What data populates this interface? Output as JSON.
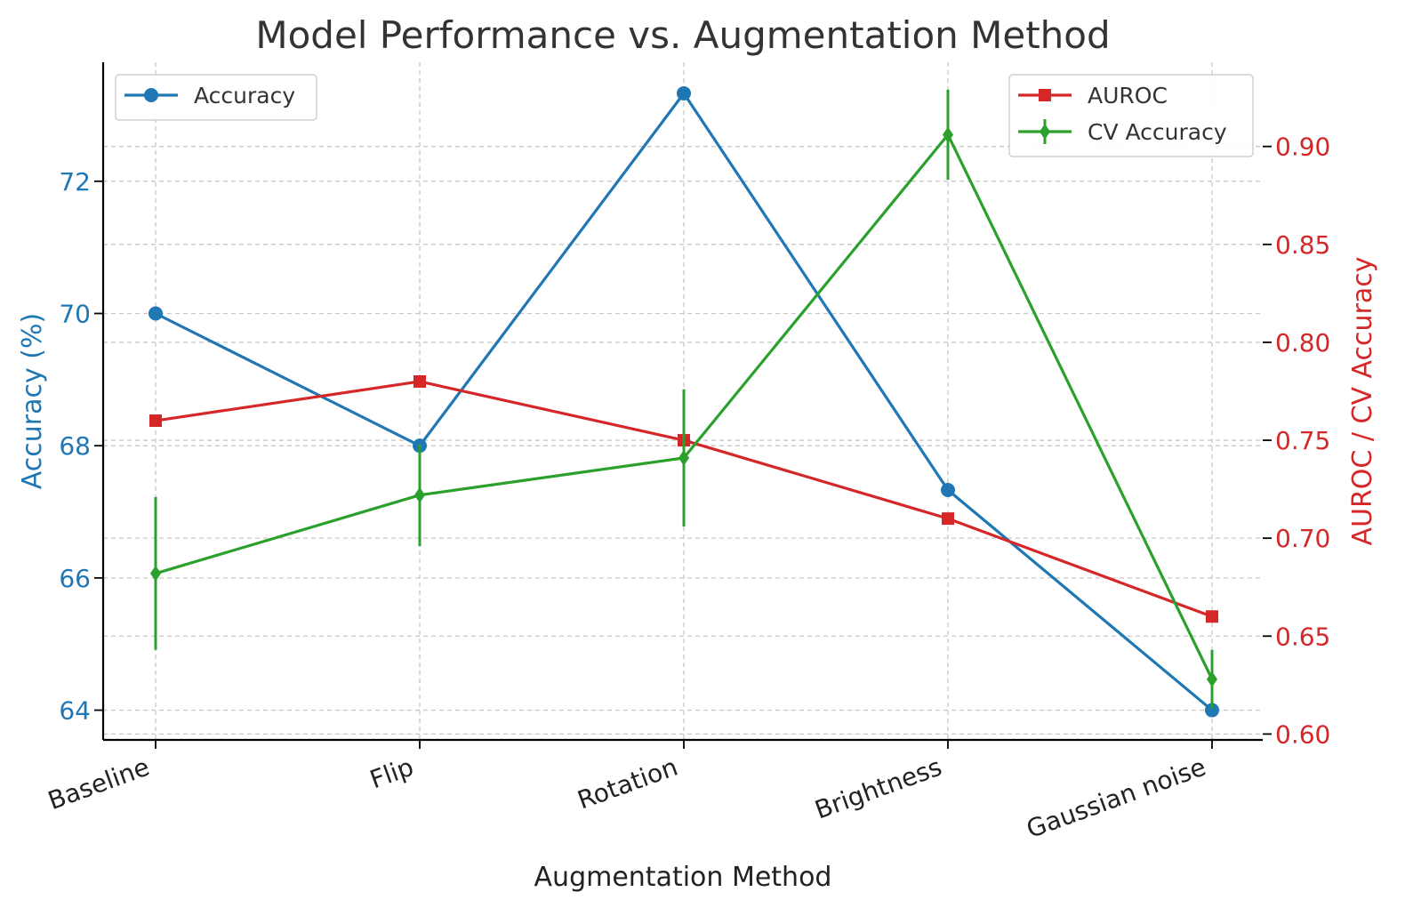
{
  "chart_data": {
    "type": "line",
    "title": "Model Performance vs. Augmentation Method",
    "xlabel": "Augmentation Method",
    "categories": [
      "Baseline",
      "Flip",
      "Rotation",
      "Brightness",
      "Gaussian noise"
    ],
    "left_axis": {
      "label": "Accuracy (%)",
      "ticks": [
        "64",
        "66",
        "68",
        "70",
        "72"
      ],
      "tick_values": [
        64,
        66,
        68,
        70,
        72
      ],
      "range": [
        63.55,
        73.8
      ]
    },
    "right_axis": {
      "label": "AUROC / CV Accuracy",
      "ticks": [
        "0.60",
        "0.65",
        "0.70",
        "0.75",
        "0.80",
        "0.85",
        "0.90"
      ],
      "tick_values": [
        0.6,
        0.65,
        0.7,
        0.75,
        0.8,
        0.85,
        0.9
      ],
      "range": [
        0.597,
        0.943
      ]
    },
    "series": [
      {
        "name": "Accuracy",
        "axis": "left",
        "marker": "circle",
        "color": "#1f77b4",
        "values": [
          70.0,
          68.0,
          73.33,
          67.33,
          64.0
        ]
      },
      {
        "name": "AUROC",
        "axis": "right",
        "marker": "square",
        "color": "#d62728",
        "values": [
          0.76,
          0.78,
          0.75,
          0.71,
          0.66
        ]
      },
      {
        "name": "CV Accuracy",
        "axis": "right",
        "marker": "diamond",
        "color": "#2ca02c",
        "values": [
          0.682,
          0.722,
          0.741,
          0.906,
          0.628
        ],
        "errors": [
          0.039,
          0.026,
          0.035,
          0.023,
          0.015
        ]
      }
    ],
    "grid": true,
    "legend": {
      "left": [
        "Accuracy"
      ],
      "right": [
        "AUROC",
        "CV Accuracy"
      ],
      "left_position": "top-left",
      "right_position": "top-right"
    }
  }
}
